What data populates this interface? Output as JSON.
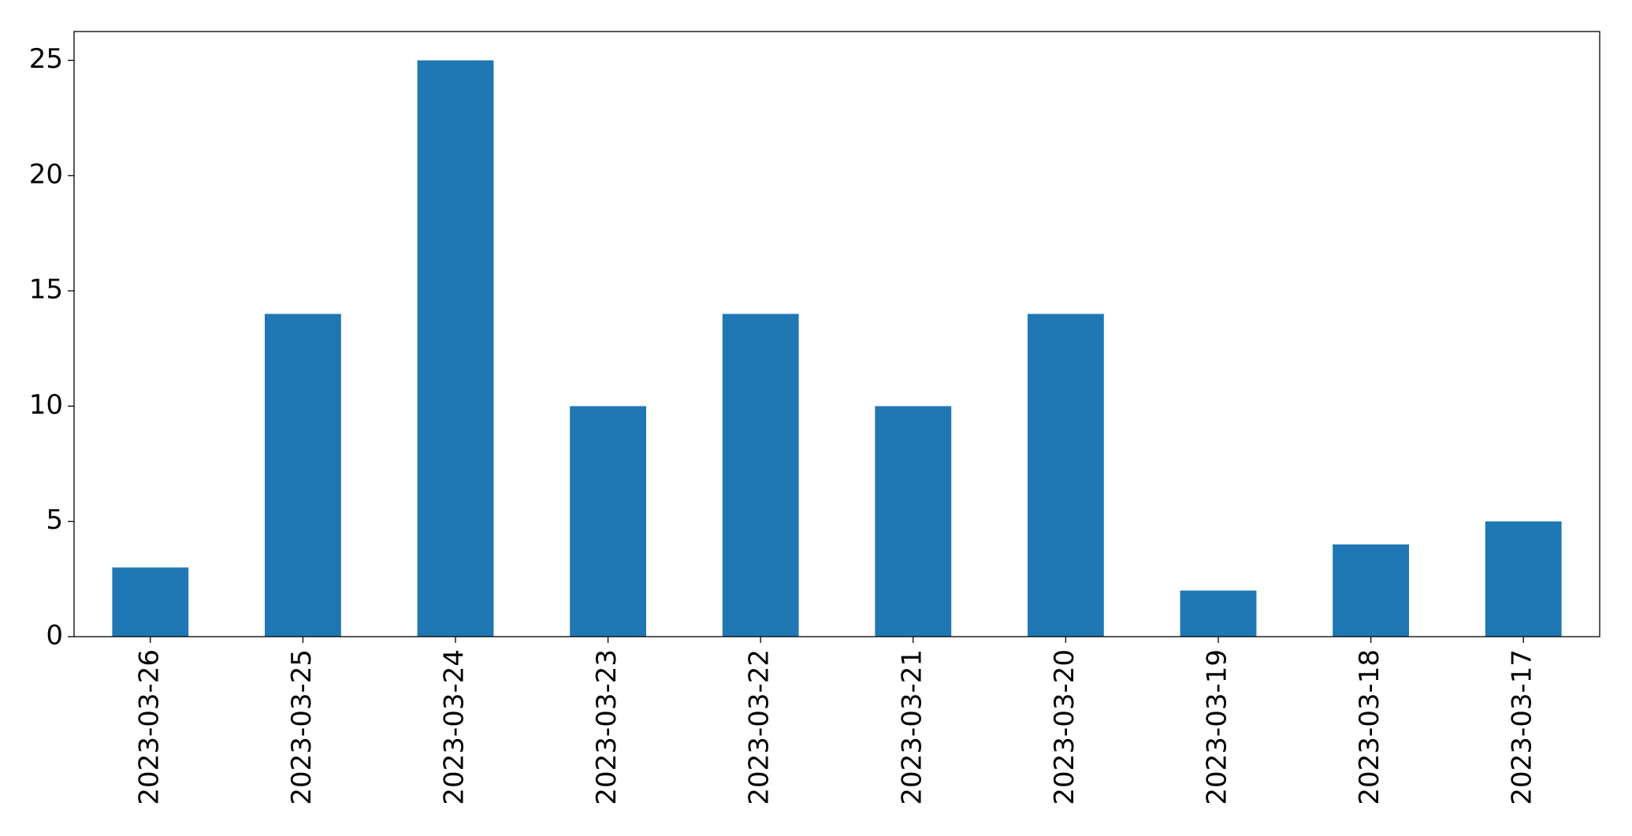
{
  "chart_data": {
    "type": "bar",
    "categories": [
      "2023-03-26",
      "2023-03-25",
      "2023-03-24",
      "2023-03-23",
      "2023-03-22",
      "2023-03-21",
      "2023-03-20",
      "2023-03-19",
      "2023-03-18",
      "2023-03-17"
    ],
    "values": [
      3,
      14,
      25,
      10,
      14,
      10,
      14,
      2,
      4,
      5
    ],
    "color": "#1f77b4",
    "ylim": [
      0,
      26.25
    ],
    "yticks": [
      0,
      5,
      10,
      15,
      20,
      25
    ],
    "grid": false
  }
}
